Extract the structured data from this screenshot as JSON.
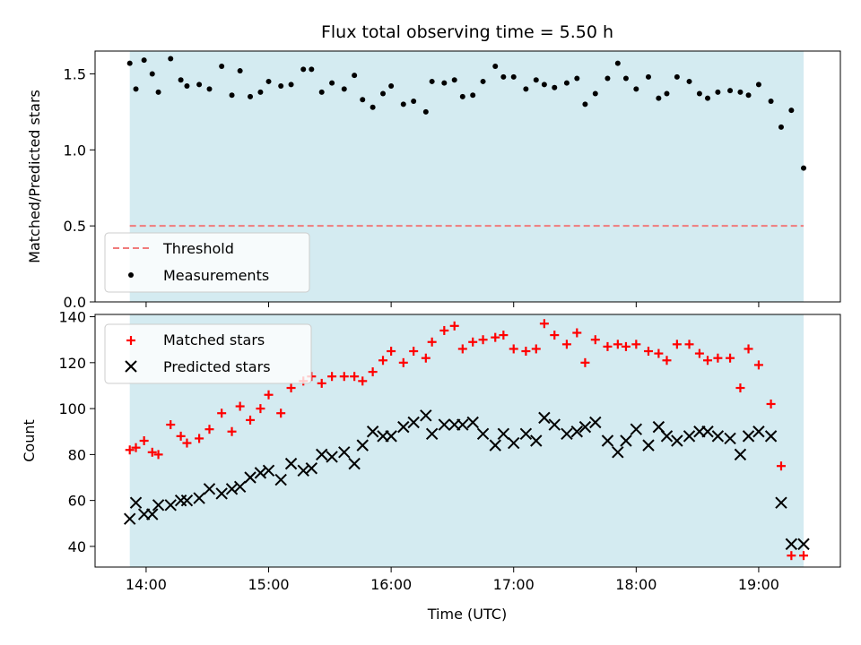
{
  "chart_data": [
    {
      "type": "scatter",
      "panel": "top",
      "title": "Flux total observing time = 5.50 h",
      "ylabel": "Matched/Predicted stars",
      "xlim": [
        "13:35",
        "19:40"
      ],
      "ylim": [
        0,
        1.65
      ],
      "yticks": [
        "0.0",
        "0.5",
        "1.0",
        "1.5"
      ],
      "observing_window": [
        "13:52",
        "19:22"
      ],
      "observing_window_color": "#d4ebf1",
      "threshold": {
        "name": "Threshold",
        "value": 0.5,
        "color": "#f07b7b",
        "style": "dashed"
      },
      "series": [
        {
          "name": "Measurements",
          "color": "#000000",
          "marker": "dot",
          "x": [
            "13:52",
            "13:55",
            "13:59",
            "14:03",
            "14:06",
            "14:12",
            "14:17",
            "14:20",
            "14:26",
            "14:31",
            "14:37",
            "14:42",
            "14:46",
            "14:51",
            "14:56",
            "15:00",
            "15:06",
            "15:11",
            "15:17",
            "15:21",
            "15:26",
            "15:31",
            "15:37",
            "15:42",
            "15:46",
            "15:51",
            "15:56",
            "16:00",
            "16:06",
            "16:11",
            "16:17",
            "16:20",
            "16:26",
            "16:31",
            "16:35",
            "16:40",
            "16:45",
            "16:51",
            "16:55",
            "17:00",
            "17:06",
            "17:11",
            "17:15",
            "17:20",
            "17:26",
            "17:31",
            "17:35",
            "17:40",
            "17:46",
            "17:51",
            "17:55",
            "18:00",
            "18:06",
            "18:11",
            "18:15",
            "18:20",
            "18:26",
            "18:31",
            "18:35",
            "18:40",
            "18:46",
            "18:51",
            "18:55",
            "19:00",
            "19:06",
            "19:11",
            "19:16",
            "19:22"
          ],
          "y": [
            1.57,
            1.4,
            1.59,
            1.5,
            1.38,
            1.6,
            1.46,
            1.42,
            1.43,
            1.4,
            1.55,
            1.36,
            1.52,
            1.35,
            1.38,
            1.45,
            1.42,
            1.43,
            1.53,
            1.53,
            1.38,
            1.44,
            1.4,
            1.49,
            1.33,
            1.28,
            1.37,
            1.42,
            1.3,
            1.32,
            1.25,
            1.45,
            1.44,
            1.46,
            1.35,
            1.36,
            1.45,
            1.55,
            1.48,
            1.48,
            1.4,
            1.46,
            1.43,
            1.41,
            1.44,
            1.47,
            1.3,
            1.37,
            1.47,
            1.57,
            1.47,
            1.4,
            1.48,
            1.34,
            1.37,
            1.48,
            1.45,
            1.37,
            1.34,
            1.38,
            1.39,
            1.38,
            1.36,
            1.43,
            1.32,
            1.15,
            1.26,
            0.88
          ]
        }
      ],
      "legend": {
        "placement": "lower-left",
        "entries": [
          "Threshold",
          "Measurements"
        ]
      }
    },
    {
      "type": "scatter",
      "panel": "bottom",
      "xlabel": "Time (UTC)",
      "ylabel": "Count",
      "xlim": [
        "13:35",
        "19:40"
      ],
      "ylim": [
        31,
        141
      ],
      "yticks": [
        "40",
        "60",
        "80",
        "100",
        "120",
        "140"
      ],
      "xticks": [
        "14:00",
        "15:00",
        "16:00",
        "17:00",
        "18:00",
        "19:00"
      ],
      "observing_window": [
        "13:52",
        "19:22"
      ],
      "observing_window_color": "#d4ebf1",
      "series": [
        {
          "name": "Matched stars",
          "color": "#ff0000",
          "marker": "plus",
          "x": [
            "13:52",
            "13:55",
            "13:59",
            "14:03",
            "14:06",
            "14:12",
            "14:17",
            "14:20",
            "14:26",
            "14:31",
            "14:37",
            "14:42",
            "14:46",
            "14:51",
            "14:56",
            "15:00",
            "15:06",
            "15:11",
            "15:17",
            "15:21",
            "15:26",
            "15:31",
            "15:37",
            "15:42",
            "15:46",
            "15:51",
            "15:56",
            "16:00",
            "16:06",
            "16:11",
            "16:17",
            "16:20",
            "16:26",
            "16:31",
            "16:35",
            "16:40",
            "16:45",
            "16:51",
            "16:55",
            "17:00",
            "17:06",
            "17:11",
            "17:15",
            "17:20",
            "17:26",
            "17:31",
            "17:35",
            "17:40",
            "17:46",
            "17:51",
            "17:55",
            "18:00",
            "18:06",
            "18:11",
            "18:15",
            "18:20",
            "18:26",
            "18:31",
            "18:35",
            "18:40",
            "18:46",
            "18:51",
            "18:55",
            "19:00",
            "19:06",
            "19:11",
            "19:16",
            "19:22"
          ],
          "y": [
            82,
            83,
            86,
            81,
            80,
            93,
            88,
            85,
            87,
            91,
            98,
            90,
            101,
            95,
            100,
            106,
            98,
            109,
            112,
            114,
            111,
            114,
            114,
            114,
            112,
            116,
            121,
            125,
            120,
            125,
            122,
            129,
            134,
            136,
            126,
            129,
            130,
            131,
            132,
            126,
            125,
            126,
            137,
            132,
            128,
            133,
            120,
            130,
            127,
            128,
            127,
            128,
            125,
            124,
            121,
            128,
            128,
            124,
            121,
            122,
            122,
            109,
            126,
            119,
            102,
            75,
            36,
            36
          ]
        },
        {
          "name": "Predicted stars",
          "color": "#000000",
          "marker": "x",
          "x": [
            "13:52",
            "13:55",
            "13:59",
            "14:03",
            "14:06",
            "14:12",
            "14:17",
            "14:20",
            "14:26",
            "14:31",
            "14:37",
            "14:42",
            "14:46",
            "14:51",
            "14:56",
            "15:00",
            "15:06",
            "15:11",
            "15:17",
            "15:21",
            "15:26",
            "15:31",
            "15:37",
            "15:42",
            "15:46",
            "15:51",
            "15:56",
            "16:00",
            "16:06",
            "16:11",
            "16:17",
            "16:20",
            "16:26",
            "16:31",
            "16:35",
            "16:40",
            "16:45",
            "16:51",
            "16:55",
            "17:00",
            "17:06",
            "17:11",
            "17:15",
            "17:20",
            "17:26",
            "17:31",
            "17:35",
            "17:40",
            "17:46",
            "17:51",
            "17:55",
            "18:00",
            "18:06",
            "18:11",
            "18:15",
            "18:20",
            "18:26",
            "18:31",
            "18:35",
            "18:40",
            "18:46",
            "18:51",
            "18:55",
            "19:00",
            "19:06",
            "19:11",
            "19:16",
            "19:22"
          ],
          "y": [
            52,
            59,
            54,
            54,
            58,
            58,
            60,
            60,
            61,
            65,
            63,
            65,
            66,
            70,
            72,
            73,
            69,
            76,
            73,
            74,
            80,
            79,
            81,
            76,
            84,
            90,
            88,
            88,
            92,
            94,
            97,
            89,
            93,
            93,
            93,
            94,
            89,
            84,
            89,
            85,
            89,
            86,
            96,
            93,
            89,
            90,
            92,
            94,
            86,
            81,
            86,
            91,
            84,
            92,
            88,
            86,
            88,
            90,
            90,
            88,
            87,
            80,
            88,
            90,
            88,
            59,
            41,
            41
          ]
        }
      ],
      "legend": {
        "placement": "upper-left",
        "entries": [
          "Matched stars",
          "Predicted stars"
        ]
      }
    }
  ]
}
